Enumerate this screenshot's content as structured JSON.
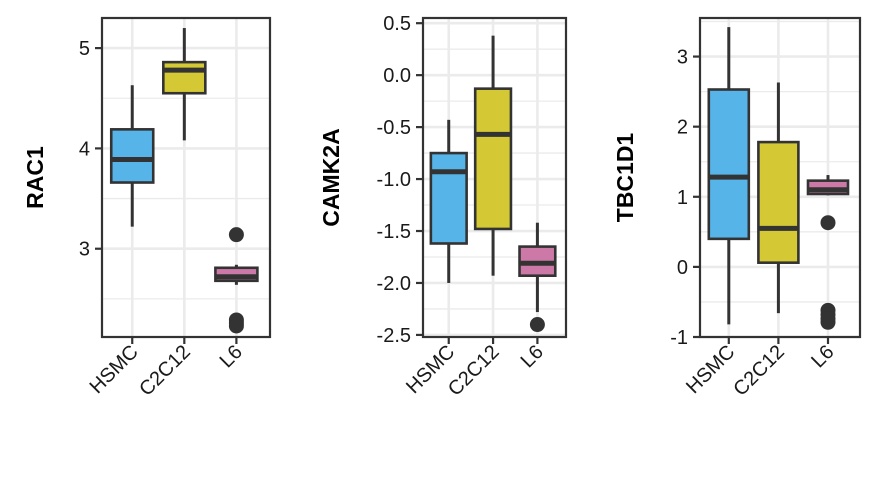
{
  "chart_data": [
    {
      "type": "box",
      "ylabel": "RAC1",
      "ylim": [
        2.12,
        5.3
      ],
      "yticks": [
        3,
        4,
        5
      ],
      "ytick_labels": [
        "3",
        "4",
        "5"
      ],
      "grid": true,
      "categories": [
        "HSMC",
        "C2C12",
        "L6"
      ],
      "boxes": [
        {
          "category": "HSMC",
          "whisker_low": 3.22,
          "q1": 3.66,
          "median": 3.89,
          "q3": 4.19,
          "whisker_high": 4.63,
          "outliers": [],
          "color": "#56B4E9"
        },
        {
          "category": "C2C12",
          "whisker_low": 4.08,
          "q1": 4.55,
          "median": 4.78,
          "q3": 4.86,
          "whisker_high": 5.2,
          "outliers": [],
          "color": "#D4C934"
        },
        {
          "category": "L6",
          "whisker_low": 2.64,
          "q1": 2.68,
          "median": 2.72,
          "q3": 2.81,
          "whisker_high": 2.84,
          "outliers": [
            3.14,
            2.29,
            2.26,
            2.23
          ],
          "color": "#CC79A7"
        }
      ]
    },
    {
      "type": "box",
      "ylabel": "CAMK2A",
      "ylim": [
        -2.52,
        0.55
      ],
      "yticks": [
        0.5,
        0,
        -0.5,
        -1,
        -1.5,
        -2,
        -2.5
      ],
      "ytick_labels": [
        "0.5",
        "0.0",
        "-0.5",
        "-1.0",
        "-1.5",
        "-2.0",
        "-2.5"
      ],
      "grid": true,
      "categories": [
        "HSMC",
        "C2C12",
        "L6"
      ],
      "boxes": [
        {
          "category": "HSMC",
          "whisker_low": -2.0,
          "q1": -1.62,
          "median": -0.93,
          "q3": -0.75,
          "whisker_high": -0.43,
          "outliers": [],
          "color": "#56B4E9"
        },
        {
          "category": "C2C12",
          "whisker_low": -1.93,
          "q1": -1.48,
          "median": -0.57,
          "q3": -0.13,
          "whisker_high": 0.38,
          "outliers": [],
          "color": "#D4C934"
        },
        {
          "category": "L6",
          "whisker_low": -2.28,
          "q1": -1.93,
          "median": -1.81,
          "q3": -1.65,
          "whisker_high": -1.42,
          "outliers": [
            -2.4
          ],
          "color": "#CC79A7"
        }
      ]
    },
    {
      "type": "box",
      "ylabel": "TBC1D1",
      "ylim": [
        -1.0,
        3.55
      ],
      "yticks": [
        3,
        2,
        1,
        0,
        -1
      ],
      "ytick_labels": [
        "3",
        "2",
        "1",
        "0",
        "-1"
      ],
      "grid": true,
      "categories": [
        "HSMC",
        "C2C12",
        "L6"
      ],
      "boxes": [
        {
          "category": "HSMC",
          "whisker_low": -0.82,
          "q1": 0.4,
          "median": 1.28,
          "q3": 2.53,
          "whisker_high": 3.42,
          "outliers": [],
          "color": "#56B4E9"
        },
        {
          "category": "C2C12",
          "whisker_low": -0.66,
          "q1": 0.06,
          "median": 0.55,
          "q3": 1.78,
          "whisker_high": 2.63,
          "outliers": [],
          "color": "#D4C934"
        },
        {
          "category": "L6",
          "whisker_low": 1.02,
          "q1": 1.04,
          "median": 1.1,
          "q3": 1.23,
          "whisker_high": 1.31,
          "outliers": [
            0.63,
            -0.62,
            -0.68,
            -0.74,
            -0.79
          ],
          "color": "#CC79A7"
        }
      ]
    }
  ]
}
